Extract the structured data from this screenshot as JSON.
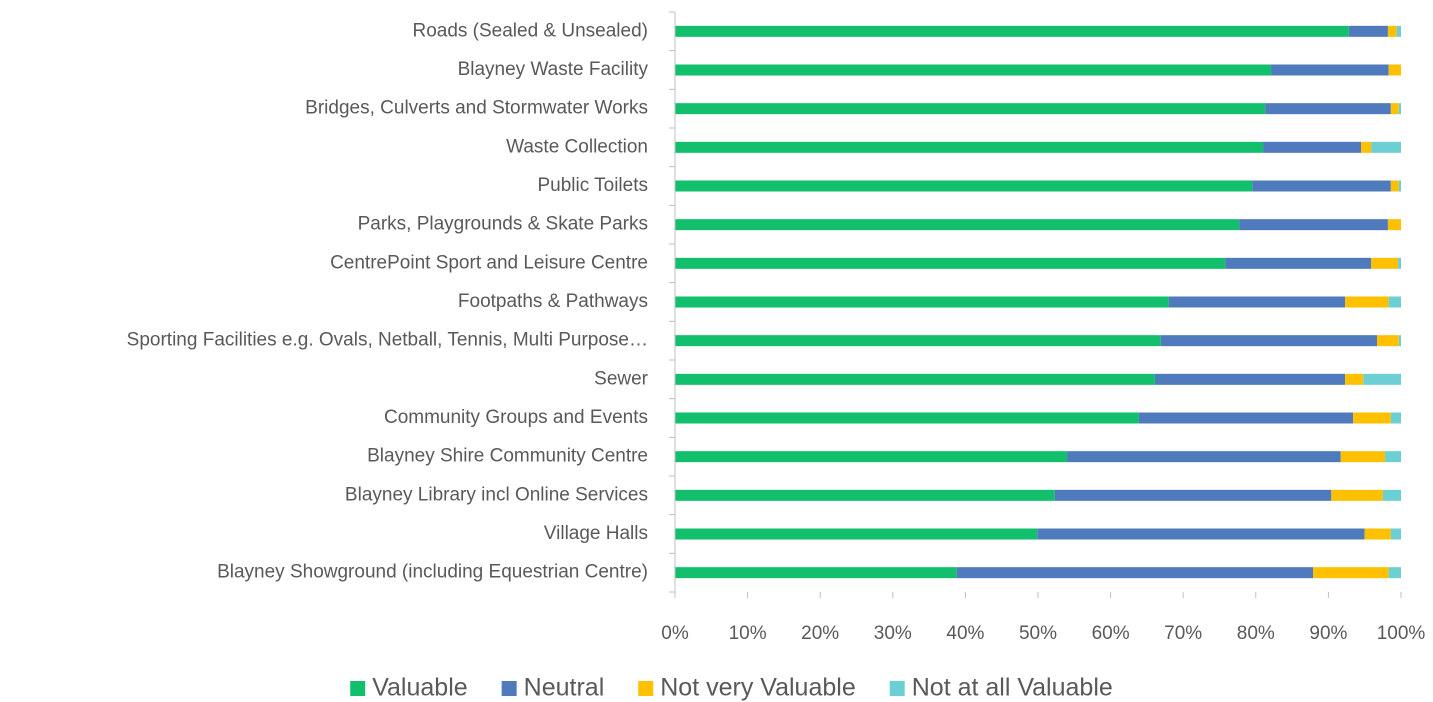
{
  "chart_data": {
    "type": "bar",
    "orientation": "horizontal",
    "stacked": true,
    "categories": [
      "Roads (Sealed & Unsealed)",
      "Blayney Waste Facility",
      "Bridges, Culverts and Stormwater Works",
      "Waste Collection",
      "Public Toilets",
      "Parks, Playgrounds & Skate Parks",
      "CentrePoint Sport and Leisure Centre",
      "Footpaths & Pathways",
      "Sporting Facilities e.g. Ovals, Netball, Tennis, Multi Purpose…",
      "Sewer",
      "Community Groups and Events",
      "Blayney Shire Community Centre",
      "Blayney Library incl Online Services",
      "Village Halls",
      "Blayney Showground (including Equestrian Centre)"
    ],
    "series": [
      {
        "name": "Valuable",
        "color": "#12bf6c",
        "values": [
          92.8,
          82.1,
          81.3,
          81.0,
          79.5,
          77.7,
          75.8,
          68.0,
          66.9,
          66.1,
          63.9,
          54.0,
          52.3,
          49.9,
          38.8
        ]
      },
      {
        "name": "Neutral",
        "color": "#4f7bbd",
        "values": [
          5.4,
          16.2,
          17.3,
          13.5,
          19.1,
          20.5,
          20.1,
          24.3,
          29.8,
          26.2,
          29.5,
          37.7,
          38.1,
          45.1,
          49.1
        ]
      },
      {
        "name": "Not very Valuable",
        "color": "#ffc000",
        "values": [
          1.2,
          1.7,
          1.1,
          1.4,
          1.1,
          1.8,
          3.7,
          6.0,
          3.0,
          2.5,
          5.2,
          6.1,
          7.1,
          3.6,
          10.4
        ]
      },
      {
        "name": "Not at all Valuable",
        "color": "#6ccfd4",
        "values": [
          0.6,
          0,
          0.3,
          4.1,
          0.3,
          0,
          0.4,
          1.7,
          0.3,
          5.2,
          1.4,
          2.2,
          2.5,
          1.4,
          1.7
        ]
      }
    ],
    "xlim": [
      0,
      100
    ],
    "xticks": [
      {
        "value": 0,
        "label": "0%"
      },
      {
        "value": 10,
        "label": "10%"
      },
      {
        "value": 20,
        "label": "20%"
      },
      {
        "value": 30,
        "label": "30%"
      },
      {
        "value": 40,
        "label": "40%"
      },
      {
        "value": 50,
        "label": "50%"
      },
      {
        "value": 60,
        "label": "60%"
      },
      {
        "value": 70,
        "label": "70%"
      },
      {
        "value": 80,
        "label": "80%"
      },
      {
        "value": 90,
        "label": "90%"
      },
      {
        "value": 100,
        "label": "100%"
      }
    ],
    "grid": false,
    "legend": "bottom"
  }
}
